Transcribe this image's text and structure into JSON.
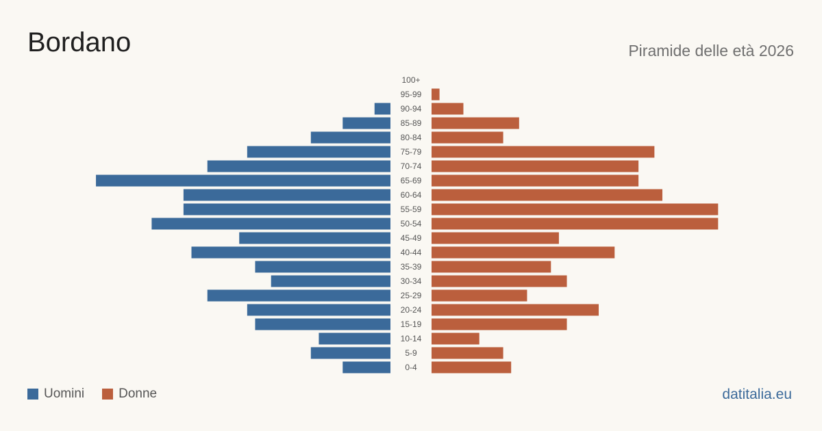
{
  "header": {
    "title": "Bordano",
    "subtitle": "Piramide delle età 2026"
  },
  "legend": {
    "men_label": "Uomini",
    "women_label": "Donne"
  },
  "footer": {
    "source": "datitalia.eu"
  },
  "colors": {
    "men": "#3b6a9a",
    "women": "#bb5f3d",
    "label": "#555555"
  },
  "chart_data": {
    "type": "bar",
    "orientation": "horizontal-pyramid",
    "title": "Bordano",
    "subtitle": "Piramide delle età 2026",
    "categories": [
      "100+",
      "95-99",
      "90-94",
      "85-89",
      "80-84",
      "75-79",
      "70-74",
      "65-69",
      "60-64",
      "55-59",
      "50-54",
      "45-49",
      "40-44",
      "35-39",
      "30-34",
      "25-29",
      "20-24",
      "15-19",
      "10-14",
      "5-9",
      "0-4"
    ],
    "series": [
      {
        "name": "Uomini",
        "values": [
          0,
          0,
          2,
          6,
          10,
          18,
          23,
          37,
          26,
          26,
          30,
          19,
          25,
          17,
          15,
          23,
          18,
          17,
          9,
          10,
          6
        ]
      },
      {
        "name": "Donne",
        "values": [
          0,
          1,
          4,
          11,
          9,
          28,
          26,
          26,
          29,
          36,
          36,
          16,
          23,
          15,
          17,
          12,
          21,
          17,
          6,
          9,
          10
        ]
      }
    ],
    "legend_position": "bottom-left",
    "grid": false
  }
}
